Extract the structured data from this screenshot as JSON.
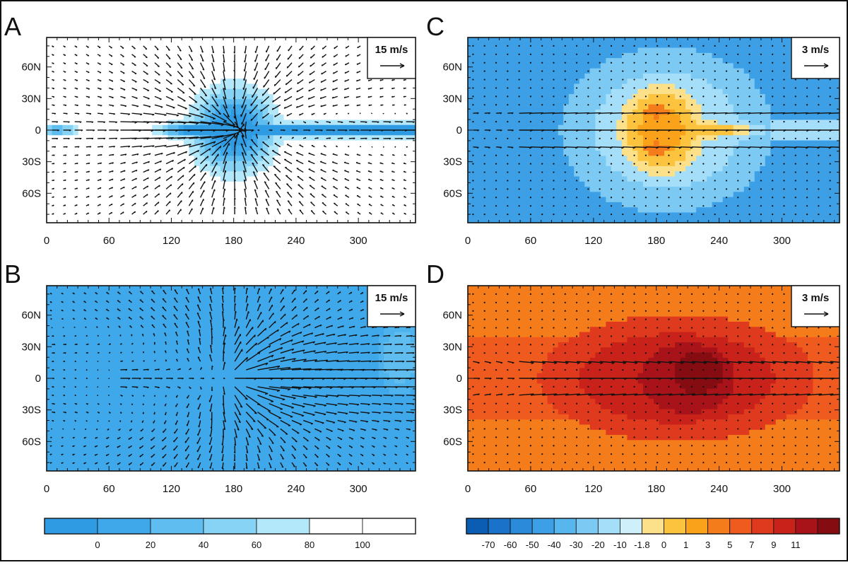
{
  "figure": {
    "panels": [
      {
        "id": "A",
        "label": "A",
        "reference_vector": "15 m/s",
        "field": "A"
      },
      {
        "id": "B",
        "label": "B",
        "reference_vector": "15 m/s",
        "field": "B"
      },
      {
        "id": "C",
        "label": "C",
        "reference_vector": "3 m/s",
        "field": "C"
      },
      {
        "id": "D",
        "label": "D",
        "reference_vector": "3 m/s",
        "field": "D"
      }
    ],
    "colorbar_left": {
      "colors": [
        "#2f9be3",
        "#3ea8ea",
        "#5fbdf0",
        "#86d3f5",
        "#b3e7fa",
        "#ffffff",
        "#ffffff"
      ],
      "labels": [
        "0",
        "20",
        "40",
        "60",
        "80",
        "100"
      ]
    },
    "colorbar_right": {
      "colors": [
        "#0b5cb3",
        "#1a73c9",
        "#2b8ad9",
        "#3d9fe5",
        "#58b6ee",
        "#7ccaf3",
        "#a4def8",
        "#cfeffb",
        "#fde08a",
        "#fcc33e",
        "#f9a21a",
        "#f57c1a",
        "#ef5a1e",
        "#e03a1e",
        "#c9221a",
        "#a8131a",
        "#850d12"
      ],
      "labels": [
        "-70",
        "-60",
        "-50",
        "-40",
        "-30",
        "-20",
        "-10",
        "-1.8",
        "0",
        "1",
        "3",
        "5",
        "7",
        "9",
        "11"
      ]
    }
  },
  "chart_data": [
    {
      "type": "vector-contour",
      "panel": "A",
      "x_ticks": [
        "0",
        "60",
        "120",
        "180",
        "240",
        "300"
      ],
      "y_ticks": [
        "60N",
        "30N",
        "0",
        "30S",
        "60S"
      ],
      "xlim": [
        0,
        355
      ],
      "ylim": [
        -88,
        88
      ],
      "reference_vector": "15 m/s"
    },
    {
      "type": "vector-contour",
      "panel": "B",
      "x_ticks": [
        "0",
        "60",
        "120",
        "180",
        "240",
        "300"
      ],
      "y_ticks": [
        "60N",
        "30N",
        "0",
        "30S",
        "60S"
      ],
      "xlim": [
        0,
        355
      ],
      "ylim": [
        -88,
        88
      ],
      "reference_vector": "15 m/s"
    },
    {
      "type": "vector-contour",
      "panel": "C",
      "x_ticks": [
        "0",
        "60",
        "120",
        "180",
        "240",
        "300"
      ],
      "y_ticks": [
        "60N",
        "30N",
        "0",
        "30S",
        "60S"
      ],
      "xlim": [
        0,
        355
      ],
      "ylim": [
        -88,
        88
      ],
      "reference_vector": "3 m/s"
    },
    {
      "type": "vector-contour",
      "panel": "D",
      "x_ticks": [
        "0",
        "60",
        "120",
        "180",
        "240",
        "300"
      ],
      "y_ticks": [
        "60N",
        "30N",
        "0",
        "30S",
        "60S"
      ],
      "xlim": [
        0,
        355
      ],
      "ylim": [
        -88,
        88
      ],
      "reference_vector": "3 m/s"
    }
  ]
}
